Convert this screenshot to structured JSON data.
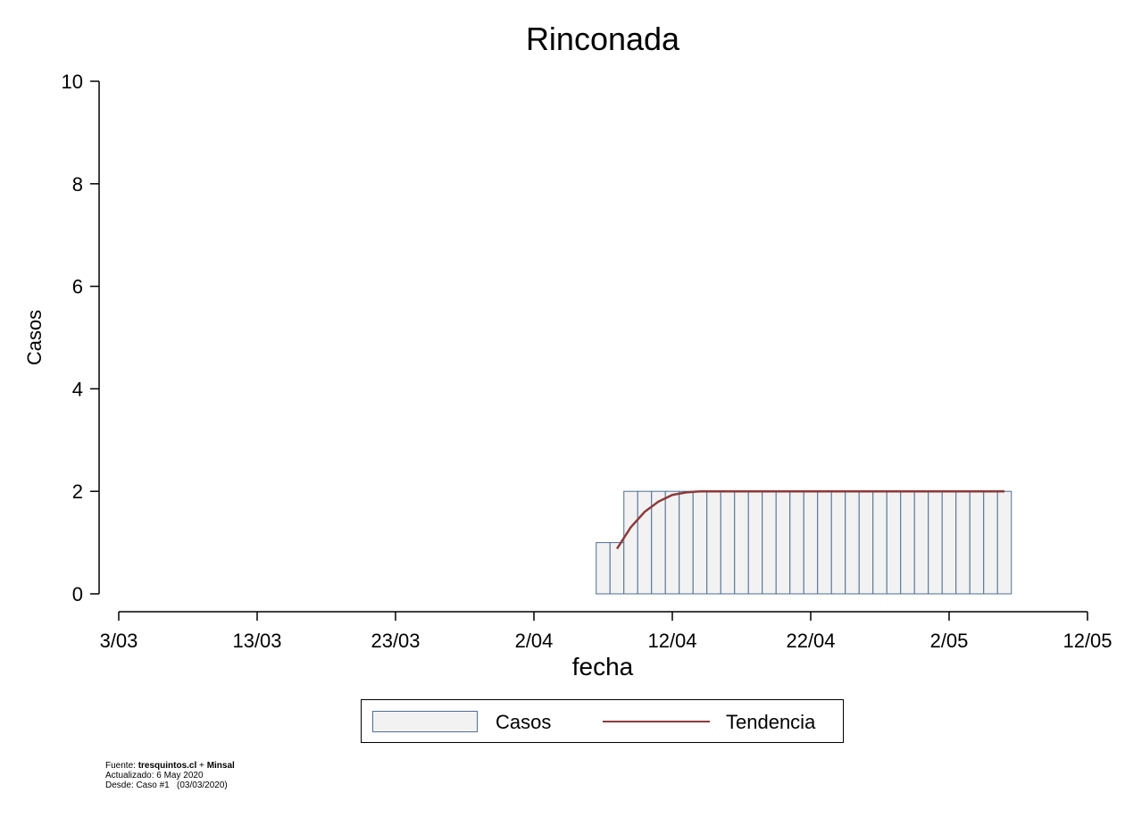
{
  "chart_data": {
    "type": "bar",
    "title": "Rinconada",
    "xlabel": "fecha",
    "ylabel": "Casos",
    "ylim": [
      0,
      10
    ],
    "yticks": [
      0,
      2,
      4,
      6,
      8,
      10
    ],
    "xlim": [
      "2020-03-03",
      "2020-05-12"
    ],
    "xticks": [
      "3/03",
      "13/03",
      "23/03",
      "2/04",
      "12/04",
      "22/04",
      "2/05",
      "12/05"
    ],
    "grid": false,
    "legend_position": "bottom",
    "series": [
      {
        "name": "Casos",
        "kind": "bar",
        "color": "#f2f2f2",
        "edge_color": "#4f6e94",
        "x": [
          "2020-04-07",
          "2020-04-08",
          "2020-04-09",
          "2020-04-10",
          "2020-04-11",
          "2020-04-12",
          "2020-04-13",
          "2020-04-14",
          "2020-04-15",
          "2020-04-16",
          "2020-04-17",
          "2020-04-18",
          "2020-04-19",
          "2020-04-20",
          "2020-04-21",
          "2020-04-22",
          "2020-04-23",
          "2020-04-24",
          "2020-04-25",
          "2020-04-26",
          "2020-04-27",
          "2020-04-28",
          "2020-04-29",
          "2020-04-30",
          "2020-05-01",
          "2020-05-02",
          "2020-05-03",
          "2020-05-04",
          "2020-05-05",
          "2020-05-06"
        ],
        "values": [
          1,
          1,
          2,
          2,
          2,
          2,
          2,
          2,
          2,
          2,
          2,
          2,
          2,
          2,
          2,
          2,
          2,
          2,
          2,
          2,
          2,
          2,
          2,
          2,
          2,
          2,
          2,
          2,
          2,
          2
        ]
      },
      {
        "name": "Tendencia",
        "kind": "line",
        "color": "#8c3a3a",
        "x": [
          "2020-04-08",
          "2020-04-09",
          "2020-04-10",
          "2020-04-11",
          "2020-04-12",
          "2020-04-13",
          "2020-04-14",
          "2020-04-15",
          "2020-04-16",
          "2020-04-17",
          "2020-04-18",
          "2020-04-19",
          "2020-04-20",
          "2020-04-21",
          "2020-04-22",
          "2020-04-23",
          "2020-04-24",
          "2020-04-25",
          "2020-04-26",
          "2020-04-27",
          "2020-04-28",
          "2020-04-29",
          "2020-04-30",
          "2020-05-01",
          "2020-05-02",
          "2020-05-03",
          "2020-05-04",
          "2020-05-05",
          "2020-05-06"
        ],
        "values": [
          0.88,
          1.3,
          1.6,
          1.8,
          1.93,
          1.98,
          2,
          2,
          2,
          2,
          2,
          2,
          2,
          2,
          2,
          2,
          2,
          2,
          2,
          2,
          2,
          2,
          2,
          2,
          2,
          2,
          2,
          2,
          2
        ]
      }
    ]
  },
  "legend": {
    "casos_label": "Casos",
    "tendencia_label": "Tendencia"
  },
  "footer": {
    "fuente_prefix": "Fuente: ",
    "fuente_source1": "tresquintos.cl",
    "fuente_plus": " + ",
    "fuente_source2": "Minsal",
    "actualizado": "Actualizado: 6 May 2020",
    "desde": "Desde: Caso #1   (03/03/2020)"
  }
}
